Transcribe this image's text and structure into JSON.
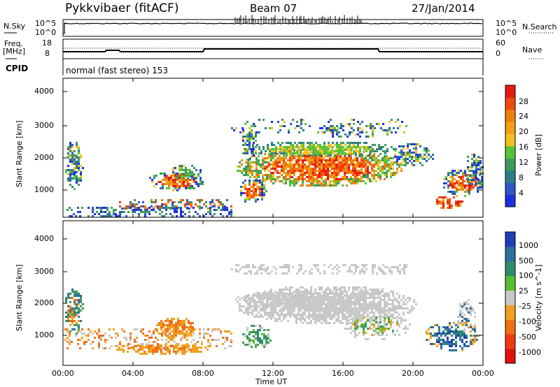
{
  "header": {
    "station": "Pykkvibaer (fitACF)",
    "beam": "Beam 07",
    "date": "27/Jan/2014"
  },
  "noise_panel": {
    "left_label": "N.Sky",
    "right_label": "N.Search",
    "ticks_left": [
      "10^5",
      "10^0"
    ],
    "ticks_right": [
      "10^5",
      "10^0"
    ]
  },
  "freq_panel": {
    "left_label_1": "Freq.",
    "left_label_2": "[MHz]",
    "ticks_left": [
      "18",
      "8"
    ],
    "right_label": "Nave",
    "ticks_right": [
      "60",
      "0"
    ],
    "cpid_label": "CPID",
    "mode": "normal (fast stereo) 153"
  },
  "chart_data": [
    {
      "type": "heatmap",
      "panel": "power",
      "ylabel": "Slant Range [km]",
      "yticks": [
        "1000",
        "2000",
        "3000",
        "4000"
      ],
      "ylim": [
        180,
        4600
      ],
      "colorbar": {
        "label": "Power [dB]",
        "ticks": [
          "4",
          "8",
          "12",
          "16",
          "20",
          "24",
          "28"
        ],
        "colors": [
          "#1f2fe0",
          "#2f56c4",
          "#2a7d8a",
          "#3e9a5c",
          "#56c43a",
          "#f0c020",
          "#f0a010",
          "#ef7f10",
          "#f04a10",
          "#e61a10"
        ]
      }
    },
    {
      "type": "heatmap",
      "panel": "velocity",
      "ylabel": "Slant Range [km]",
      "yticks": [
        "1000",
        "2000",
        "3000",
        "4000"
      ],
      "ylim": [
        180,
        4600
      ],
      "colorbar": {
        "label": "Velocity [m s^-1]",
        "ticks": [
          "1000",
          "500",
          "100",
          "25",
          "-25",
          "-100",
          "-500",
          "-1000"
        ],
        "colors": [
          "#1f3fb8",
          "#2e6e9c",
          "#2f8c6a",
          "#58c030",
          "#c8c8c8",
          "#f0a020",
          "#f07010",
          "#ef3a10",
          "#e01010"
        ]
      }
    }
  ],
  "xaxis": {
    "ticks": [
      "00:00",
      "04:00",
      "08:00",
      "12:00",
      "16:00",
      "20:00",
      "00:00"
    ],
    "label": "Time UT"
  }
}
